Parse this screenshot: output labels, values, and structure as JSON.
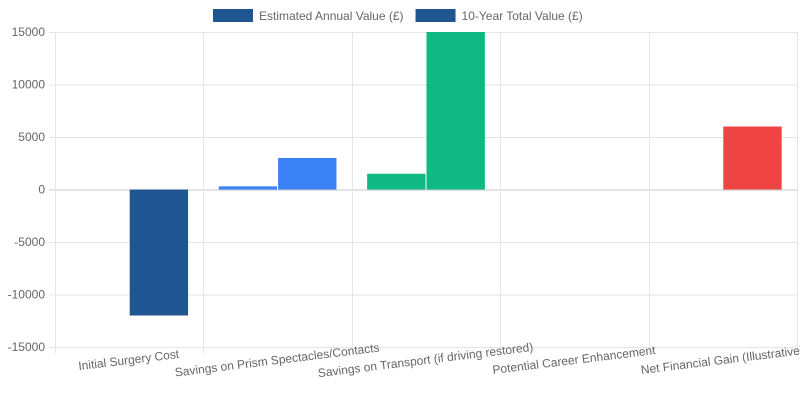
{
  "chart_data": {
    "type": "bar",
    "title": "",
    "xlabel": "",
    "ylabel": "",
    "ylim": [
      -15000,
      15000
    ],
    "yticks": [
      15000,
      10000,
      5000,
      0,
      -5000,
      -10000,
      -15000
    ],
    "grid": true,
    "legend_position": "top",
    "categories": [
      "Initial Surgery Cost",
      "Savings on Prism Spectacles/Contacts",
      "Savings on Transport (if driving restored)",
      "Potential Career Enhancement",
      "Net Financial Gain (Illustrative)"
    ],
    "series": [
      {
        "name": "Estimated Annual Value (£)",
        "legend_color": "#1f5591",
        "values": [
          0,
          300,
          1500,
          0,
          0
        ],
        "colors": [
          "#1f5591",
          "#3b82f6",
          "#10b981",
          "#f59e0b",
          "#ef4444"
        ]
      },
      {
        "name": "10-Year Total Value (£)",
        "legend_color": "#1f5591",
        "values": [
          -12000,
          3000,
          15000,
          0,
          6000
        ],
        "colors": [
          "#1f5591",
          "#3b82f6",
          "#10b981",
          "#f59e0b",
          "#ef4444"
        ]
      }
    ]
  }
}
